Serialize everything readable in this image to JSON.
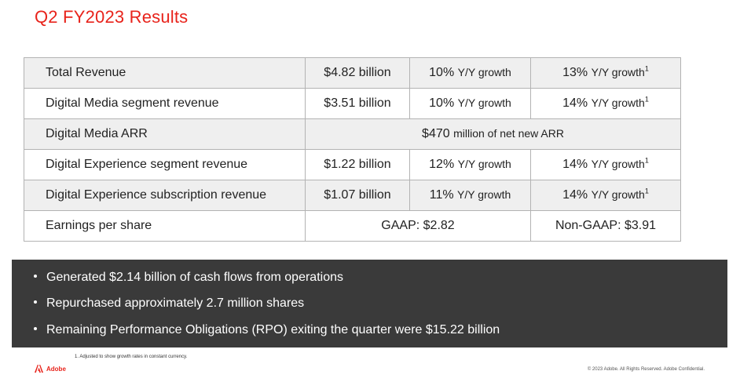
{
  "title": "Q2 FY2023 Results",
  "rows": [
    {
      "label": "Total Revenue",
      "value": "$4.82 billion",
      "growth_num": "10%",
      "growth_text": "Y/Y growth",
      "cc_num": "13%",
      "cc_text": "Y/Y growth",
      "cc_sup": "1"
    },
    {
      "label": "Digital Media segment revenue",
      "value": "$3.51 billion",
      "growth_num": "10%",
      "growth_text": "Y/Y growth",
      "cc_num": "14%",
      "cc_text": "Y/Y growth",
      "cc_sup": "1"
    },
    {
      "label": "Digital Media ARR",
      "merged_num": "$470",
      "merged_text": "million of net new ARR"
    },
    {
      "label": "Digital Experience segment revenue",
      "value": "$1.22 billion",
      "growth_num": "12%",
      "growth_text": "Y/Y growth",
      "cc_num": "14%",
      "cc_text": "Y/Y growth",
      "cc_sup": "1"
    },
    {
      "label": "Digital Experience subscription revenue",
      "value": "$1.07 billion",
      "growth_num": "11%",
      "growth_text": "Y/Y growth",
      "cc_num": "14%",
      "cc_text": "Y/Y growth",
      "cc_sup": "1"
    },
    {
      "label": "Earnings per share",
      "gaap": "GAAP: $2.82",
      "non_gaap": "Non-GAAP: $3.91"
    }
  ],
  "highlights": [
    "Generated $2.14 billion of cash flows from operations",
    "Repurchased approximately 2.7 million shares",
    "Remaining Performance Obligations (RPO) exiting the quarter were $15.22 billion"
  ],
  "footnote": "1. Adjusted to show growth rates in constant currency.",
  "logo_text": "Adobe",
  "copyright": "© 2023 Adobe. All Rights Reserved. Adobe Confidential.",
  "colors": {
    "accent": "#e8231b",
    "panel": "#3a3a3a",
    "row_shade": "#efefef",
    "border": "#b3b3b3"
  }
}
